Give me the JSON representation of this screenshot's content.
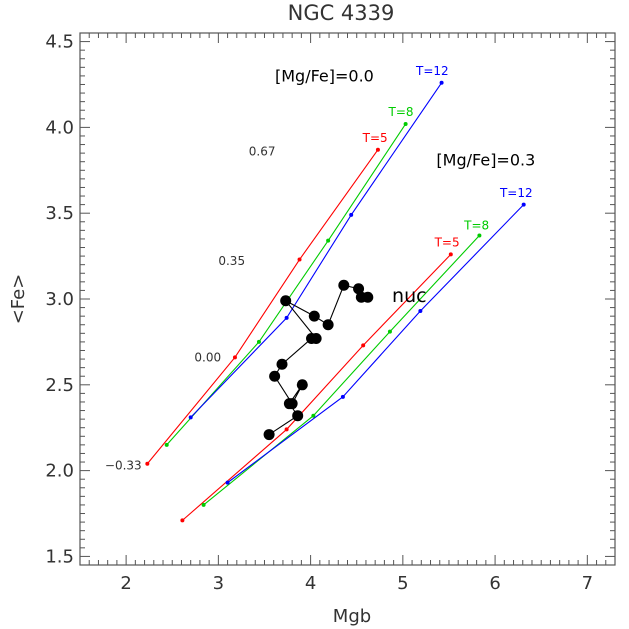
{
  "chart_data": {
    "type": "line",
    "title": "NGC 4339",
    "xlabel": "Mgb",
    "ylabel": "<Fe>",
    "xlim": [
      1.5,
      7.3
    ],
    "ylim": [
      1.45,
      4.55
    ],
    "xticks": [
      2,
      3,
      4,
      5,
      6,
      7
    ],
    "yticks": [
      1.5,
      2.0,
      2.5,
      3.0,
      3.5,
      4.0,
      4.5
    ],
    "grid": false,
    "models": [
      {
        "name": "T=5",
        "color": "#ff0000",
        "x": [
          2.23,
          3.18,
          3.88,
          4.73
        ],
        "y": [
          2.04,
          2.66,
          3.23,
          3.87
        ]
      },
      {
        "name": "T=8",
        "color": "#00cc00",
        "x": [
          2.44,
          3.44,
          4.19,
          5.03
        ],
        "y": [
          2.15,
          2.75,
          3.34,
          4.02
        ]
      },
      {
        "name": "T=12",
        "color": "#0000ff",
        "x": [
          2.7,
          3.74,
          4.44,
          5.42
        ],
        "y": [
          2.31,
          2.89,
          3.49,
          4.26
        ]
      },
      {
        "name": "T=5",
        "color": "#ff0000",
        "x": [
          2.61,
          3.74,
          4.57,
          5.52
        ],
        "y": [
          1.71,
          2.24,
          2.73,
          3.26
        ]
      },
      {
        "name": "T=8",
        "color": "#00cc00",
        "x": [
          2.84,
          4.03,
          4.86,
          5.83
        ],
        "y": [
          1.8,
          2.32,
          2.81,
          3.37
        ]
      },
      {
        "name": "T=12",
        "color": "#0000ff",
        "x": [
          3.1,
          4.35,
          5.19,
          6.31
        ],
        "y": [
          1.93,
          2.43,
          2.93,
          3.55
        ]
      }
    ],
    "observed": {
      "color": "#000000",
      "x": [
        4.55,
        4.62,
        4.52,
        4.36,
        4.19,
        4.04,
        3.73,
        4.06,
        4.01,
        3.69,
        3.61,
        3.8,
        3.91,
        3.77,
        3.86,
        3.55
      ],
      "y": [
        3.01,
        3.01,
        3.06,
        3.08,
        2.85,
        2.9,
        2.99,
        2.77,
        2.77,
        2.62,
        2.55,
        2.39,
        2.5,
        2.39,
        2.32,
        2.21
      ]
    },
    "metallicity_labels": [
      {
        "text": "0.67",
        "x": 3.33,
        "y": 3.86
      },
      {
        "text": "0.35",
        "x": 3.0,
        "y": 3.22
      },
      {
        "text": "0.00",
        "x": 2.74,
        "y": 2.66
      },
      {
        "text": "−0.33",
        "x": 1.77,
        "y": 2.03
      }
    ],
    "annotations": [
      {
        "text": "[Mg/Fe]=0.0",
        "x": 4.15,
        "y": 4.3,
        "color": "#000000",
        "size": 16
      },
      {
        "text": "[Mg/Fe]=0.3",
        "x": 5.9,
        "y": 3.81,
        "color": "#000000",
        "size": 16
      },
      {
        "text": "T=12",
        "x": 5.32,
        "y": 4.33,
        "color": "#0000ff",
        "size": 12
      },
      {
        "text": "T=8",
        "x": 4.98,
        "y": 4.09,
        "color": "#00cc00",
        "size": 12
      },
      {
        "text": "T=5",
        "x": 4.7,
        "y": 3.94,
        "color": "#ff0000",
        "size": 12
      },
      {
        "text": "T=12",
        "x": 6.23,
        "y": 3.62,
        "color": "#0000ff",
        "size": 12
      },
      {
        "text": "T=8",
        "x": 5.8,
        "y": 3.43,
        "color": "#00cc00",
        "size": 12
      },
      {
        "text": "T=5",
        "x": 5.48,
        "y": 3.33,
        "color": "#ff0000",
        "size": 12
      },
      {
        "text": "nuc",
        "x": 5.07,
        "y": 3.02,
        "color": "#000000",
        "size": 19
      }
    ]
  }
}
